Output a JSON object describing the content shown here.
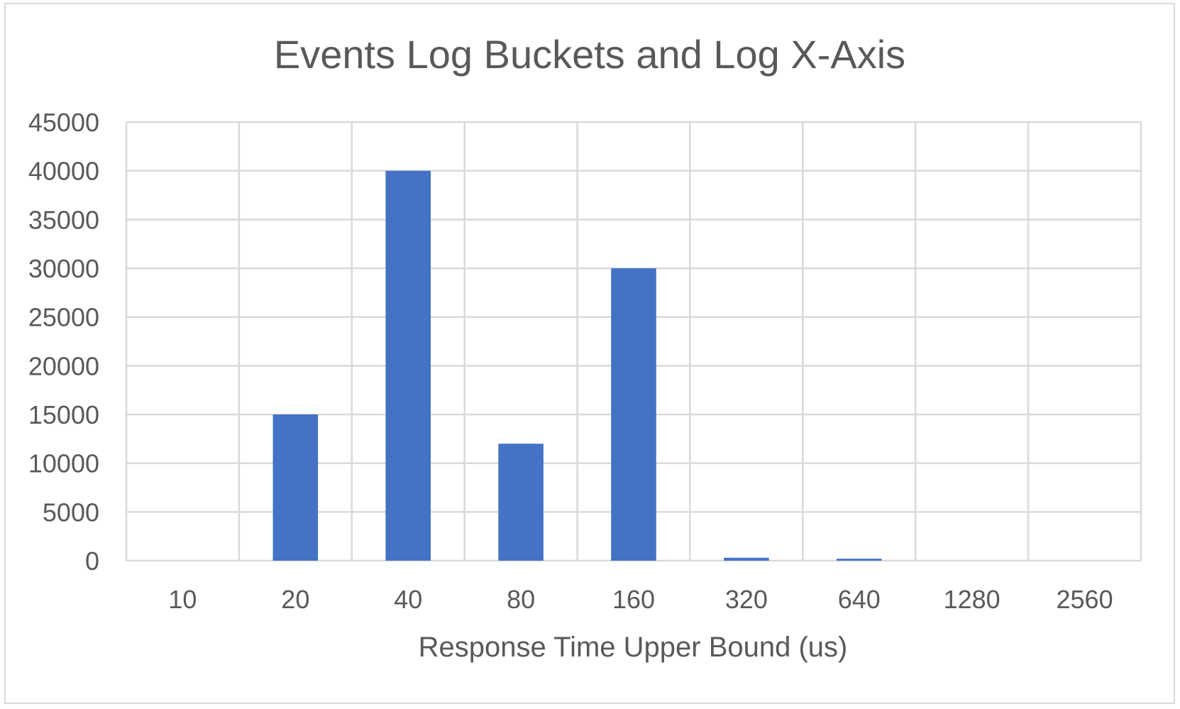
{
  "chart_data": {
    "type": "bar",
    "title": "Events Log Buckets and Log X-Axis",
    "xlabel": "Response Time Upper Bound (us)",
    "ylabel": "",
    "categories": [
      "10",
      "20",
      "40",
      "80",
      "160",
      "320",
      "640",
      "1280",
      "2560"
    ],
    "values": [
      0,
      15000,
      40000,
      12000,
      30000,
      300,
      200,
      0,
      0
    ],
    "ylim": [
      0,
      45000
    ],
    "yticks": [
      0,
      5000,
      10000,
      15000,
      20000,
      25000,
      30000,
      35000,
      40000,
      45000
    ],
    "grid": "on",
    "legend": "none",
    "colors": {
      "bar": "#4472c4",
      "grid": "#d9d9d9",
      "text": "#595959"
    }
  }
}
